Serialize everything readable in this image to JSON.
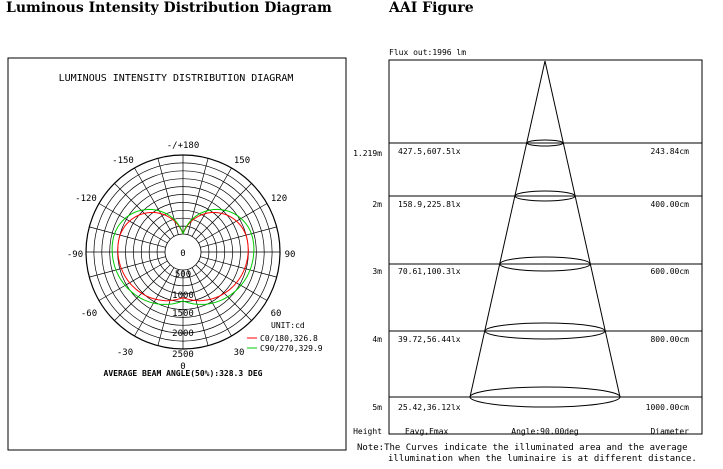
{
  "headings": {
    "left": "Luminous Intensity Distribution Diagram",
    "right": "AAI Figure"
  },
  "polar": {
    "title": "LUMINOUS INTENSITY DISTRIBUTION DIAGRAM",
    "angle_labels": [
      "-/+180",
      "-150",
      "150",
      "-120",
      "120",
      "-90",
      "90",
      "-60",
      "60",
      "-30",
      "30",
      "0"
    ],
    "radial_labels": [
      "0",
      "500",
      "1000",
      "1500",
      "2000",
      "2500"
    ],
    "unit": "UNIT:cd",
    "legend": [
      {
        "label": "C0/180,326.8",
        "color": "#ff0000"
      },
      {
        "label": "C90/270,329.9",
        "color": "#00cc00"
      }
    ],
    "beam_angle": "AVERAGE BEAM ANGLE(50%):328.3 DEG",
    "max_cd": 2500,
    "ring_step": 250,
    "angle_step_deg": 15
  },
  "aai": {
    "flux": "Flux out:1996 lm",
    "rows": [
      {
        "height": "1.219m",
        "values": "427.5,607.5lx",
        "diameter": "243.84cm"
      },
      {
        "height": "2m",
        "values": "158.9,225.8lx",
        "diameter": "400.00cm"
      },
      {
        "height": "3m",
        "values": "70.61,100.3lx",
        "diameter": "600.00cm"
      },
      {
        "height": "4m",
        "values": "39.72,56.44lx",
        "diameter": "800.00cm"
      },
      {
        "height": "5m",
        "values": "25.42,36.12lx",
        "diameter": "1000.00cm"
      }
    ],
    "footer": {
      "height": "Height",
      "eavg": "Eavg,Emax",
      "angle": "Angle:90.00deg",
      "diameter": "Diameter"
    },
    "note_line1": "Note:The Curves indicate the illuminated area and the average",
    "note_line2": "illumination when the luminaire is at different distance."
  }
}
